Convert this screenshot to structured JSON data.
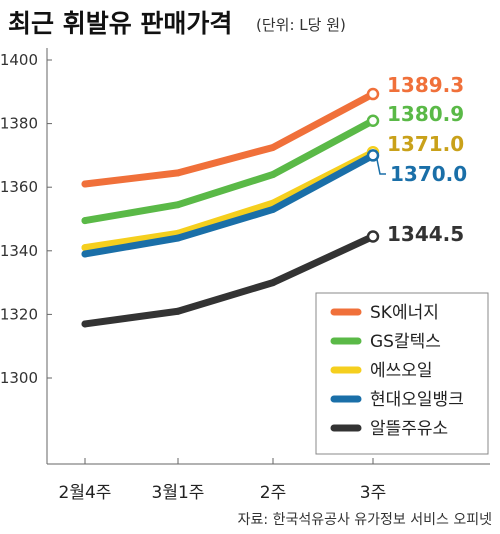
{
  "chart_data": {
    "type": "line",
    "title": "최근 휘발유 판매가격",
    "subtitle": "(단위: L당 원)",
    "source": "자료: 한국석유공사 유가정보 서비스 오피넷",
    "categories": [
      "2월4주",
      "3월1주",
      "2주",
      "3주"
    ],
    "ylim": [
      1280,
      1410
    ],
    "yticks": [
      1300,
      1320,
      1340,
      1360,
      1380,
      1400
    ],
    "grid": false,
    "legend_position": "bottom-right",
    "series": [
      {
        "name": "SK에너지",
        "color": "#f0703a",
        "values": [
          1361,
          1364.5,
          1372.5,
          1389.3
        ],
        "end_label": "1389.3"
      },
      {
        "name": "GS칼텍스",
        "color": "#5ab947",
        "values": [
          1349.5,
          1354.5,
          1364,
          1380.9
        ],
        "end_label": "1380.9"
      },
      {
        "name": "에쓰오일",
        "color": "#f5cf1e",
        "values": [
          1341,
          1345.5,
          1355,
          1371.0
        ],
        "end_label": "1371.0",
        "label_color": "#c9a11a"
      },
      {
        "name": "현대오일뱅크",
        "color": "#1a6fa8",
        "values": [
          1339,
          1344,
          1353,
          1370.0
        ],
        "end_label": "1370.0"
      },
      {
        "name": "알뜰주유소",
        "color": "#333333",
        "values": [
          1317,
          1321,
          1330,
          1344.5
        ],
        "end_label": "1344.5"
      }
    ]
  }
}
